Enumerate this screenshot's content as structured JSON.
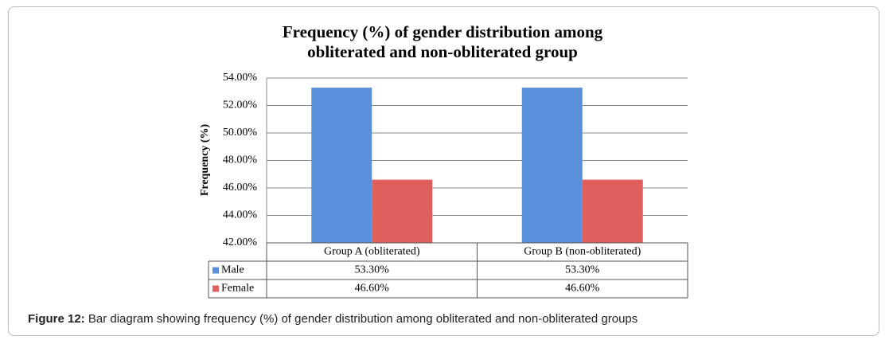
{
  "chart_data": {
    "type": "bar",
    "title": [
      "Frequency (%) of gender distribution among",
      "obliterated and non-obliterated group"
    ],
    "y_label": "Frequency (%)",
    "categories": [
      "Group A (obliterated)",
      "Group B (non-obliterated)"
    ],
    "series": [
      {
        "name": "Male",
        "color": "#5a8fdc",
        "values": [
          53.3,
          53.3
        ],
        "value_labels": [
          "53.30%",
          "53.30%"
        ]
      },
      {
        "name": "Female",
        "color": "#de5f5b",
        "values": [
          46.6,
          46.6
        ],
        "value_labels": [
          "46.60%",
          "46.60%"
        ]
      }
    ],
    "ylim": [
      42,
      54
    ],
    "yticks": [
      {
        "value": 42,
        "label": "42.00%"
      },
      {
        "value": 44,
        "label": "44.00%"
      },
      {
        "value": 46,
        "label": "46.00%"
      },
      {
        "value": 48,
        "label": "48.00%"
      },
      {
        "value": 50,
        "label": "50.00%"
      },
      {
        "value": 52,
        "label": "52.00%"
      },
      {
        "value": 54,
        "label": "54.00%"
      }
    ],
    "grid": true
  },
  "caption": {
    "label": "Figure 12:",
    "text": "Bar diagram showing frequency (%) of gender distribution among obliterated and non-obliterated groups"
  }
}
